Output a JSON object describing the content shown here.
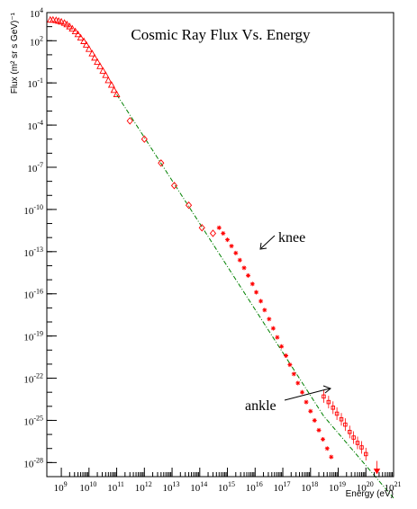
{
  "chart_data": {
    "type": "scatter",
    "title": "Cosmic Ray Flux Vs. Energy",
    "xlabel": "Energy (eV)",
    "ylabel": "Flux (m² sr s GeV)⁻¹",
    "x_scale": "log",
    "y_scale": "log",
    "xlim": [
      300000000,
      1e+21
    ],
    "ylim": [
      1e-29,
      10000
    ],
    "x_tick_exponents": [
      9,
      10,
      11,
      12,
      13,
      14,
      15,
      16,
      17,
      18,
      19,
      20,
      21
    ],
    "y_tick_exponents": [
      4,
      2,
      -1,
      -4,
      -7,
      -10,
      -13,
      -16,
      -19,
      -22,
      -25,
      -28
    ],
    "tick_base": "10",
    "grid": false,
    "legend": "none",
    "marker_color": "#ff0000",
    "reference_line_color": "#008000",
    "series": [
      {
        "marker": "triangle-open",
        "x": [
          400000000.0,
          500000000.0,
          650000000.0,
          800000000.0,
          1000000000.0,
          1300000000.0,
          1600000000.0,
          2000000000.0,
          2500000000.0,
          3200000000.0,
          4000000000.0,
          5000000000.0,
          6500000000.0,
          8000000000.0,
          10000000000.0,
          13000000000.0,
          16000000000.0,
          20000000000.0,
          25000000000.0,
          32000000000.0,
          40000000000.0,
          50000000000.0,
          65000000000.0,
          80000000000.0,
          100000000000.0
        ],
        "y": [
          3000,
          3000,
          2800,
          2500,
          2200,
          1800,
          1400,
          1000,
          700,
          450,
          280,
          160,
          90,
          50,
          25,
          12,
          6,
          3,
          1.5,
          0.7,
          0.35,
          0.15,
          0.07,
          0.03,
          0.015
        ]
      },
      {
        "marker": "diamond-open",
        "x": [
          300000000000.0,
          1000000000000.0,
          4000000000000.0,
          12000000000000.0,
          40000000000000.0,
          120000000000000.0,
          300000000000000.0
        ],
        "y": [
          0.0002,
          1e-05,
          2e-07,
          5e-09,
          2e-10,
          5e-12,
          2e-12
        ]
      },
      {
        "marker": "star",
        "x": [
          500000000000000.0,
          700000000000000.0,
          1000000000000000.0,
          1400000000000000.0,
          2000000000000000.0,
          2800000000000000.0,
          4000000000000000.0,
          5600000000000000.0,
          8000000000000000.0,
          1.1e+16,
          1.6e+16,
          2.2e+16,
          3.2e+16,
          4.5e+16,
          6.3e+16,
          9e+16,
          1.3e+17,
          1.8e+17,
          2.5e+17,
          3.5e+17,
          5e+17,
          7e+17,
          1e+18,
          1.4e+18,
          2e+18,
          2.8e+18,
          4e+18,
          5.6e+18
        ],
        "y": [
          5e-12,
          2e-12,
          7e-13,
          2.5e-13,
          8e-14,
          2.5e-14,
          7e-15,
          2e-15,
          5e-16,
          1.3e-16,
          3e-17,
          7e-18,
          1.6e-18,
          3.5e-19,
          8e-20,
          1.8e-20,
          4e-21,
          9e-22,
          2e-22,
          4.5e-23,
          1e-23,
          2e-24,
          4.5e-25,
          1e-25,
          2e-26,
          4.5e-27,
          1e-27,
          2.5e-28
        ]
      },
      {
        "marker": "square-errorbar",
        "x": [
          3e+18,
          4.5e+18,
          6.5e+18,
          9e+18,
          1.3e+19,
          1.8e+19,
          2.6e+19,
          3.6e+19,
          5e+19,
          7e+19,
          1e+20
        ],
        "y": [
          5e-24,
          2e-24,
          8e-25,
          3e-25,
          1.2e-25,
          5e-26,
          1.5e-26,
          6e-27,
          2.5e-27,
          1.2e-27,
          4e-28
        ]
      },
      {
        "marker": "triangle-down-filled",
        "x": [
          2.5e+20
        ],
        "y": [
          3e-29
        ]
      }
    ],
    "reference_line": {
      "style": "dash-dot",
      "x": [
        100000000000.0,
        3e+18,
        1e+21
      ],
      "y": [
        0.015,
        2e-25,
        3e-31
      ]
    },
    "annotations": [
      {
        "text": "knee",
        "arrow_target_energy": 3000000000000000.0
      },
      {
        "text": "ankle",
        "arrow_target_energy": 5e+18
      }
    ]
  }
}
